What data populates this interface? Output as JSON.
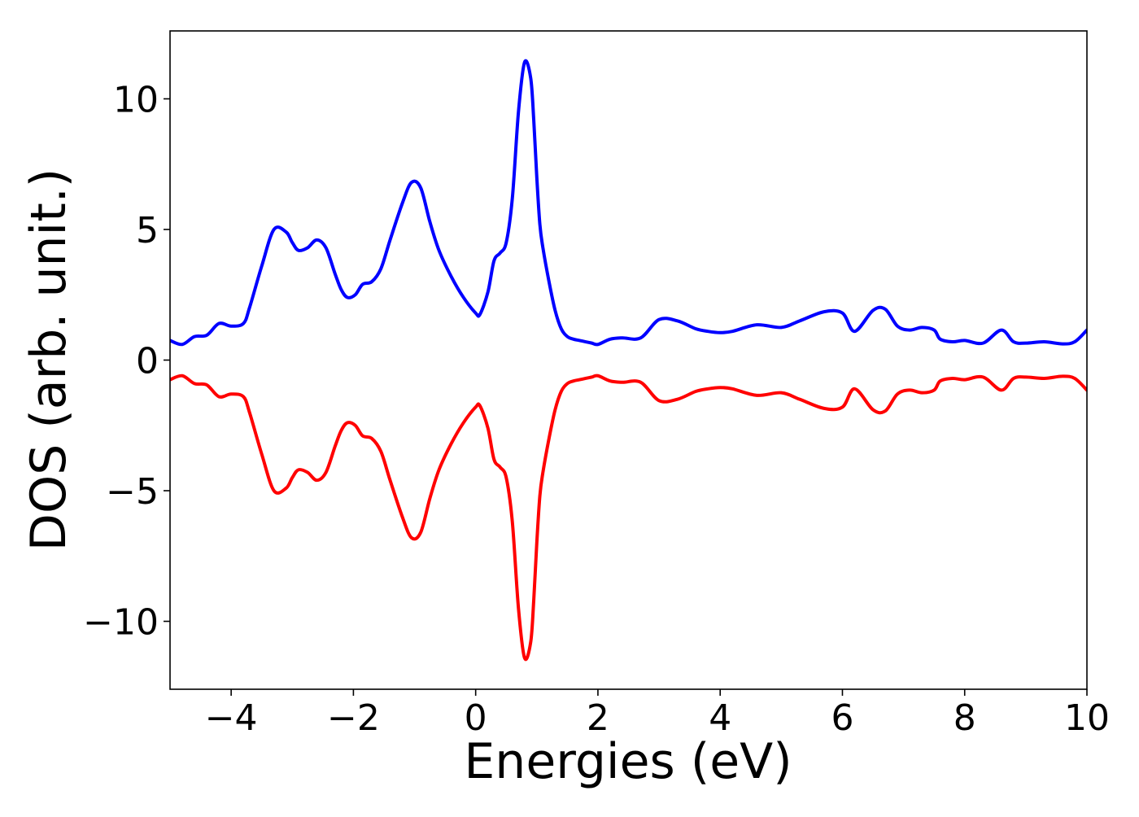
{
  "chart_data": {
    "type": "line",
    "title": "",
    "xlabel": "Energies (eV)",
    "ylabel": "DOS (arb. unit.)",
    "xlim": [
      -5,
      10
    ],
    "ylim": [
      -12.6,
      12.6
    ],
    "xticks": [
      -4,
      -2,
      0,
      2,
      4,
      6,
      8,
      10
    ],
    "yticks": [
      -10,
      -5,
      0,
      5,
      10
    ],
    "xtick_labels": [
      "−4",
      "−2",
      "0",
      "2",
      "4",
      "6",
      "8",
      "10"
    ],
    "ytick_labels": [
      "−10",
      "−5",
      "0",
      "5",
      "10"
    ],
    "grid": false,
    "legend": false,
    "x": [
      -5.0,
      -4.8,
      -4.6,
      -4.4,
      -4.2,
      -4.0,
      -3.8,
      -3.7,
      -3.5,
      -3.3,
      -3.1,
      -3.0,
      -2.9,
      -2.75,
      -2.6,
      -2.45,
      -2.3,
      -2.2,
      -2.1,
      -1.97,
      -1.85,
      -1.7,
      -1.55,
      -1.4,
      -1.2,
      -1.05,
      -0.9,
      -0.75,
      -0.6,
      -0.4,
      -0.2,
      0.0,
      0.07,
      0.2,
      0.3,
      0.4,
      0.5,
      0.6,
      0.7,
      0.8,
      0.9,
      0.95,
      1.0,
      1.05,
      1.1,
      1.2,
      1.3,
      1.4,
      1.5,
      1.6,
      1.7,
      1.8,
      1.9,
      2.0,
      2.2,
      2.4,
      2.7,
      3.0,
      3.3,
      3.6,
      3.8,
      4.0,
      4.2,
      4.6,
      5.0,
      5.3,
      5.7,
      6.0,
      6.2,
      6.5,
      6.7,
      6.9,
      7.1,
      7.3,
      7.5,
      7.6,
      7.8,
      8.0,
      8.3,
      8.6,
      8.8,
      9.0,
      9.3,
      9.6,
      9.8,
      10.0
    ],
    "series": [
      {
        "color": "#0000ff",
        "values": [
          0.75,
          0.6,
          0.9,
          0.95,
          1.4,
          1.3,
          1.4,
          2.0,
          3.6,
          5.0,
          4.9,
          4.5,
          4.2,
          4.3,
          4.6,
          4.3,
          3.3,
          2.7,
          2.4,
          2.5,
          2.9,
          3.0,
          3.5,
          4.6,
          6.0,
          6.8,
          6.6,
          5.3,
          4.2,
          3.2,
          2.4,
          1.8,
          1.75,
          2.6,
          3.8,
          4.1,
          4.5,
          6.2,
          9.5,
          11.4,
          10.8,
          9.2,
          7.0,
          5.2,
          4.3,
          3.0,
          1.9,
          1.2,
          0.9,
          0.8,
          0.75,
          0.7,
          0.65,
          0.6,
          0.8,
          0.85,
          0.85,
          1.55,
          1.5,
          1.2,
          1.1,
          1.05,
          1.1,
          1.35,
          1.25,
          1.5,
          1.85,
          1.8,
          1.1,
          1.9,
          1.95,
          1.3,
          1.15,
          1.25,
          1.15,
          0.8,
          0.7,
          0.75,
          0.65,
          1.15,
          0.7,
          0.65,
          0.7,
          0.62,
          0.7,
          1.15
        ]
      },
      {
        "color": "#ff0000",
        "values": [
          -0.75,
          -0.6,
          -0.9,
          -0.95,
          -1.4,
          -1.3,
          -1.4,
          -2.0,
          -3.6,
          -5.0,
          -4.9,
          -4.5,
          -4.2,
          -4.3,
          -4.6,
          -4.3,
          -3.3,
          -2.7,
          -2.4,
          -2.5,
          -2.9,
          -3.0,
          -3.5,
          -4.6,
          -6.0,
          -6.8,
          -6.6,
          -5.3,
          -4.2,
          -3.2,
          -2.4,
          -1.8,
          -1.75,
          -2.6,
          -3.8,
          -4.1,
          -4.5,
          -6.2,
          -9.5,
          -11.4,
          -10.8,
          -9.2,
          -7.0,
          -5.2,
          -4.3,
          -3.0,
          -1.9,
          -1.2,
          -0.9,
          -0.8,
          -0.75,
          -0.7,
          -0.65,
          -0.6,
          -0.8,
          -0.85,
          -0.85,
          -1.55,
          -1.5,
          -1.2,
          -1.1,
          -1.05,
          -1.1,
          -1.35,
          -1.25,
          -1.5,
          -1.85,
          -1.8,
          -1.1,
          -1.9,
          -1.95,
          -1.3,
          -1.15,
          -1.25,
          -1.15,
          -0.8,
          -0.7,
          -0.75,
          -0.65,
          -1.15,
          -0.7,
          -0.65,
          -0.7,
          -0.62,
          -0.7,
          -1.15
        ]
      }
    ]
  }
}
